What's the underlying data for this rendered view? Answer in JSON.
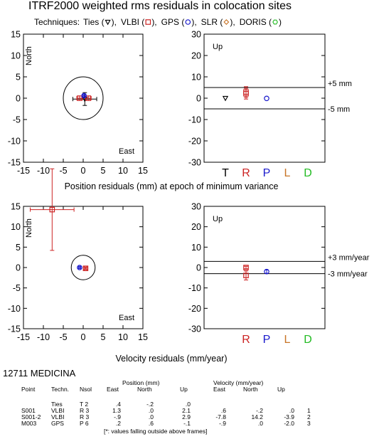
{
  "header": {
    "title": "ITRF2000 weighted rms residuals in colocation sites",
    "techniques_prefix": "Techniques:",
    "techniques": [
      {
        "name": "Ties",
        "symbol": "triangle",
        "color": "#000000"
      },
      {
        "name": "VLBI",
        "symbol": "square",
        "color": "#cc2222"
      },
      {
        "name": "GPS",
        "symbol": "circle",
        "color": "#1a1acc"
      },
      {
        "name": "SLR",
        "symbol": "diamond",
        "color": "#c87528"
      },
      {
        "name": "DORIS",
        "symbol": "hexagon",
        "color": "#22bb22"
      }
    ]
  },
  "chart_data": [
    {
      "id": "position-horizontal",
      "type": "scatter",
      "corner_labels": {
        "top_left": "North",
        "bottom_right": "East"
      },
      "xlim": [
        -15,
        15
      ],
      "ylim": [
        -15,
        15
      ],
      "xticks": [
        -15,
        -10,
        -5,
        0,
        5,
        10,
        15
      ],
      "yticks": [
        -15,
        -10,
        -5,
        0,
        5,
        10,
        15
      ],
      "circle_radius": 5,
      "points": [
        {
          "technique": "Ties",
          "east": 0.4,
          "north": -0.2,
          "err_east": 3,
          "err_north": 1.5
        },
        {
          "technique": "VLBI",
          "east": 1.3,
          "north": 0.0,
          "err_east": 0.7,
          "err_north": 0.5
        },
        {
          "technique": "VLBI",
          "east": -0.9,
          "north": 0.0,
          "err_east": 0.7,
          "err_north": 0.5
        },
        {
          "technique": "GPS",
          "east": 0.2,
          "north": 0.6,
          "err_east": 0.3,
          "err_north": 0.3
        }
      ]
    },
    {
      "id": "position-up",
      "type": "scatter",
      "title": "Up",
      "ylim": [
        -30,
        30
      ],
      "yticks": [
        -30,
        -20,
        -10,
        0,
        10,
        20,
        30
      ],
      "categories": [
        "T",
        "R",
        "P",
        "L",
        "D"
      ],
      "category_colors": [
        "#000000",
        "#cc2222",
        "#1a1acc",
        "#c87528",
        "#22bb22"
      ],
      "threshold_lines": [
        {
          "value": 5,
          "label": "+5 mm"
        },
        {
          "value": -5,
          "label": "-5 mm"
        }
      ],
      "points": [
        {
          "category": "T",
          "value": 0.0,
          "err": 0
        },
        {
          "category": "R",
          "value": 2.1,
          "err": 2.5
        },
        {
          "category": "R",
          "value": 2.9,
          "err": 2.5
        },
        {
          "category": "P",
          "value": -0.1,
          "err": 0
        }
      ]
    },
    {
      "id": "velocity-horizontal",
      "type": "scatter",
      "corner_labels": {
        "top_left": "North",
        "bottom_right": "East"
      },
      "xlim": [
        -15,
        15
      ],
      "ylim": [
        -15,
        15
      ],
      "xticks": [
        -15,
        -10,
        -5,
        0,
        5,
        10,
        15
      ],
      "yticks": [
        -15,
        -10,
        -5,
        0,
        5,
        10,
        15
      ],
      "circle_radius": 3,
      "points": [
        {
          "technique": "VLBI",
          "east": 0.6,
          "north": -0.2,
          "err_east": 0.3,
          "err_north": 0.3
        },
        {
          "technique": "VLBI",
          "east": -7.8,
          "north": 14.2,
          "err_east": 5.5,
          "err_north": 10
        },
        {
          "technique": "GPS",
          "east": -0.9,
          "north": 0.0,
          "err_east": 0.3,
          "err_north": 0.3
        }
      ]
    },
    {
      "id": "velocity-up",
      "type": "scatter",
      "title": "Up",
      "ylim": [
        -30,
        30
      ],
      "yticks": [
        -30,
        -20,
        -10,
        0,
        10,
        20,
        30
      ],
      "categories": [
        "R",
        "P",
        "L",
        "D"
      ],
      "category_colors": [
        "#cc2222",
        "#1a1acc",
        "#c87528",
        "#22bb22"
      ],
      "threshold_lines": [
        {
          "value": 3,
          "label": "+3 mm/year"
        },
        {
          "value": -3,
          "label": "-3 mm/year"
        }
      ],
      "points": [
        {
          "category": "R",
          "value": 0.0,
          "err": 0.6
        },
        {
          "category": "R",
          "value": -3.9,
          "err": 2.2
        },
        {
          "category": "P",
          "value": -2.0,
          "err": 0.8
        }
      ]
    }
  ],
  "axis_captions": {
    "position": "Position residuals (mm) at epoch of minimum variance",
    "velocity": "Velocity residuals (mm/year)"
  },
  "station": "12711 MEDICINA",
  "table": {
    "group_position": "Position (mm)",
    "group_velocity": "Velocity (mm/year)",
    "columns": [
      "Point",
      "Techn.",
      "Nsol",
      "East",
      "North",
      "Up",
      "East",
      "North",
      "Up"
    ],
    "rows": [
      [
        "",
        "Ties",
        "T  2",
        ".4",
        "-.2",
        ".0",
        "",
        "",
        "",
        ""
      ],
      [
        "S001",
        "VLBI",
        "R  3",
        "1.3",
        ".0",
        "2.1",
        ".6",
        "-.2",
        ".0",
        "1"
      ],
      [
        "S001-2",
        "VLBI",
        "R  3",
        "-.9",
        ".0",
        "2.9",
        "-7.8",
        "14.2",
        "-3.9",
        "2"
      ],
      [
        "M003",
        "GPS",
        "P  6",
        ".2",
        ".6",
        "-.1",
        "-.9",
        ".0",
        "-2.0",
        "3"
      ]
    ],
    "footnote": "[*: values falling outside above frames]"
  }
}
